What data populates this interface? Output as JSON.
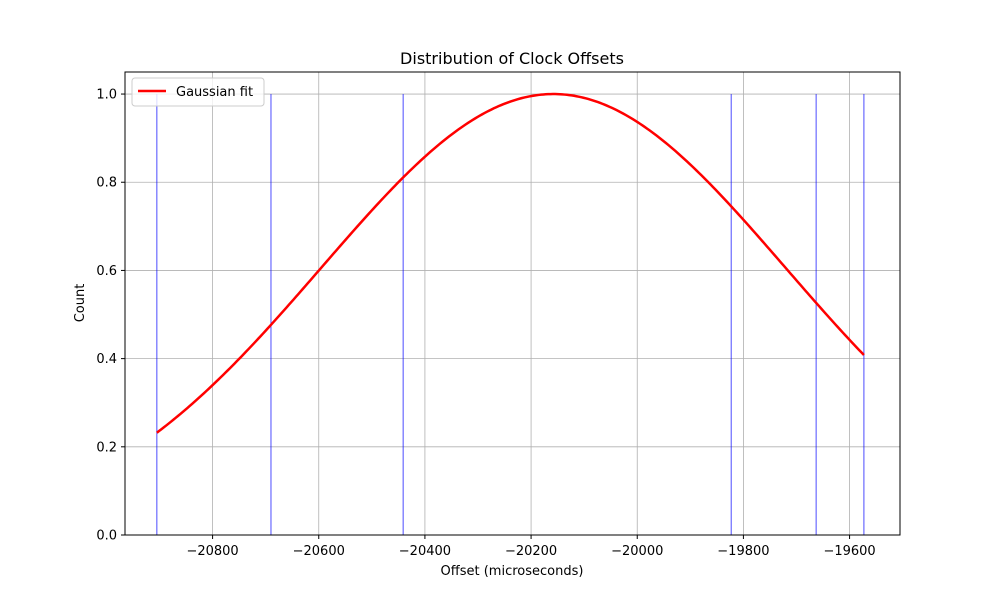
{
  "chart_data": {
    "type": "bar",
    "title": "Distribution of Clock Offsets",
    "xlabel": "Offset (microseconds)",
    "ylabel": "Count",
    "xlim": [
      -20965,
      -19505
    ],
    "ylim": [
      0,
      1.05
    ],
    "x_ticks": [
      -20800,
      -20600,
      -20400,
      -20200,
      -20000,
      -19800,
      -19600
    ],
    "x_tick_labels": [
      "−20800",
      "−20600",
      "−20400",
      "−20200",
      "−20000",
      "−19800",
      "−19600"
    ],
    "y_ticks": [
      0,
      0.2,
      0.4,
      0.6,
      0.8,
      1.0
    ],
    "y_tick_labels": [
      "0.0",
      "0.2",
      "0.4",
      "0.6",
      "0.8",
      "1.0"
    ],
    "grid": true,
    "legend": {
      "position": "top-left",
      "entries": [
        "Gaussian fit"
      ]
    },
    "histogram": {
      "color": "#0000ff",
      "bin_width": 1,
      "offsets": [
        -20905,
        -20690,
        -20441,
        -19823,
        -19663,
        -19573
      ],
      "counts": [
        1,
        1,
        1,
        1,
        1,
        1
      ]
    },
    "gaussian_fit": {
      "name": "Gaussian fit",
      "color": "#ff0000",
      "mean": -20158,
      "std": 437,
      "amplitude": 1.0,
      "x_range": [
        -20905,
        -19573
      ]
    }
  }
}
